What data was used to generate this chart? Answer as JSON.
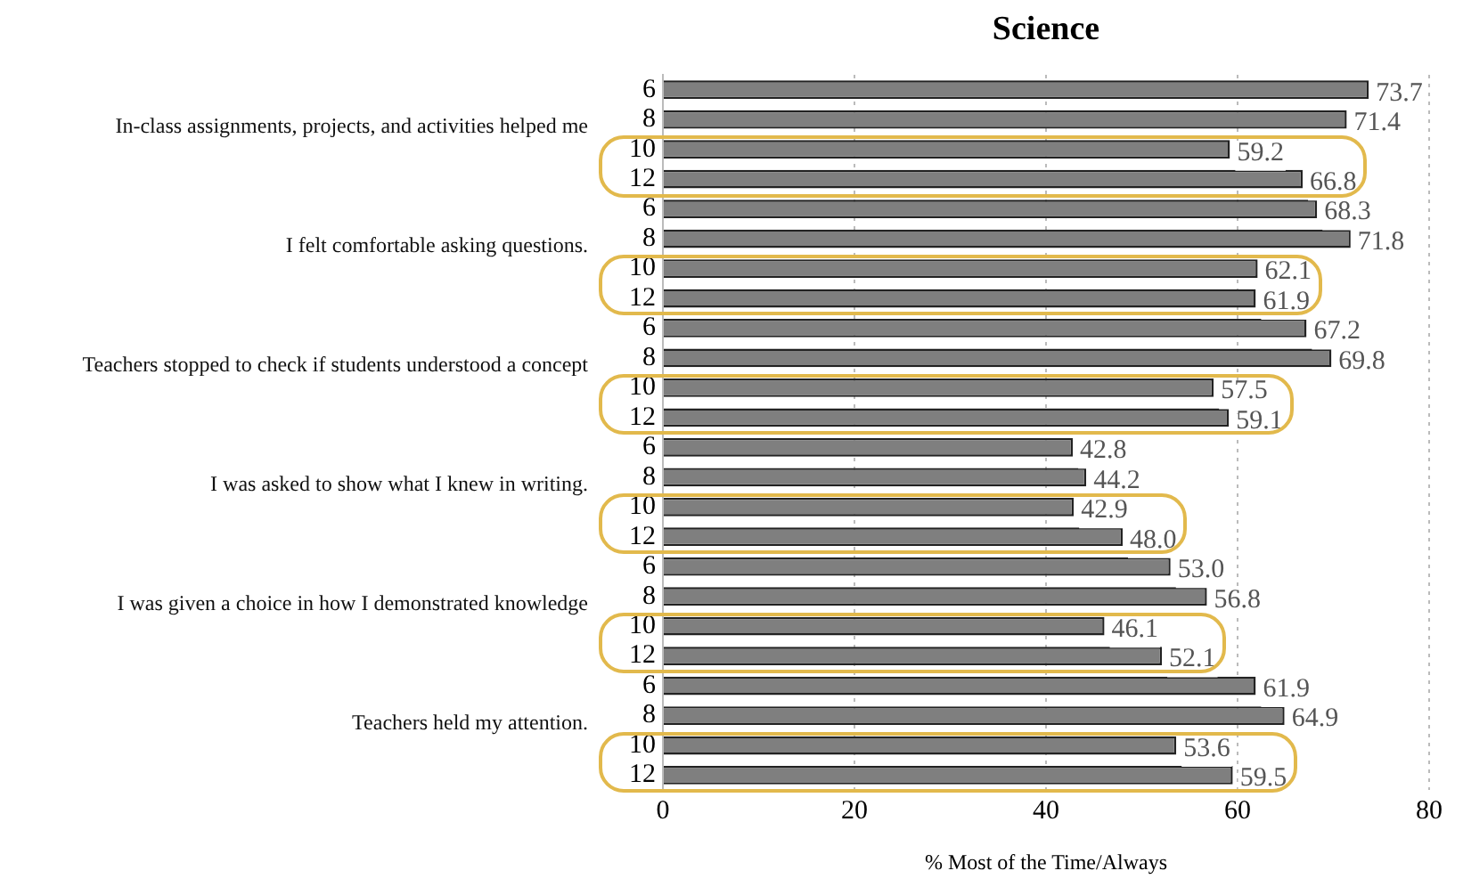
{
  "chart_data": {
    "type": "bar",
    "orientation": "horizontal",
    "title": "Science",
    "xlabel": "% Most of the Time/Always",
    "categories": [
      "6",
      "8",
      "10",
      "12",
      "6",
      "8",
      "10",
      "12",
      "6",
      "8",
      "10",
      "12",
      "6",
      "8",
      "10",
      "12",
      "6",
      "8",
      "10",
      "12",
      "6",
      "8",
      "10",
      "12"
    ],
    "values": [
      73.7,
      71.4,
      59.2,
      66.8,
      68.3,
      71.8,
      62.1,
      61.9,
      67.2,
      69.8,
      57.5,
      59.1,
      42.8,
      44.2,
      42.9,
      48.0,
      53.0,
      56.8,
      46.1,
      52.1,
      61.9,
      64.9,
      53.6,
      59.5
    ],
    "value_labels": [
      "73.7",
      "71.4",
      "59.2",
      "66.8",
      "68.3",
      "71.8",
      "62.1",
      "61.9",
      "67.2",
      "69.8",
      "57.5",
      "59.1",
      "42.8",
      "44.2",
      "42.9",
      "48.0",
      "53.0",
      "56.8",
      "46.1",
      "52.1",
      "61.9",
      "64.9",
      "53.6",
      "59.5"
    ],
    "color": "#7f7f7f",
    "annotations": [
      "In-class assignments, projects, and activities helped me",
      "I felt comfortable asking questions.",
      "Teachers stopped to check if students understood a concept",
      "I was asked to show what I knew in writing.",
      "I was given a choice in how I demonstrated knowledge",
      "Teachers held my attention."
    ],
    "xlim": [
      0,
      80
    ],
    "xticks": [
      0,
      20,
      40,
      60,
      80
    ],
    "grid": "x",
    "legend": false
  }
}
